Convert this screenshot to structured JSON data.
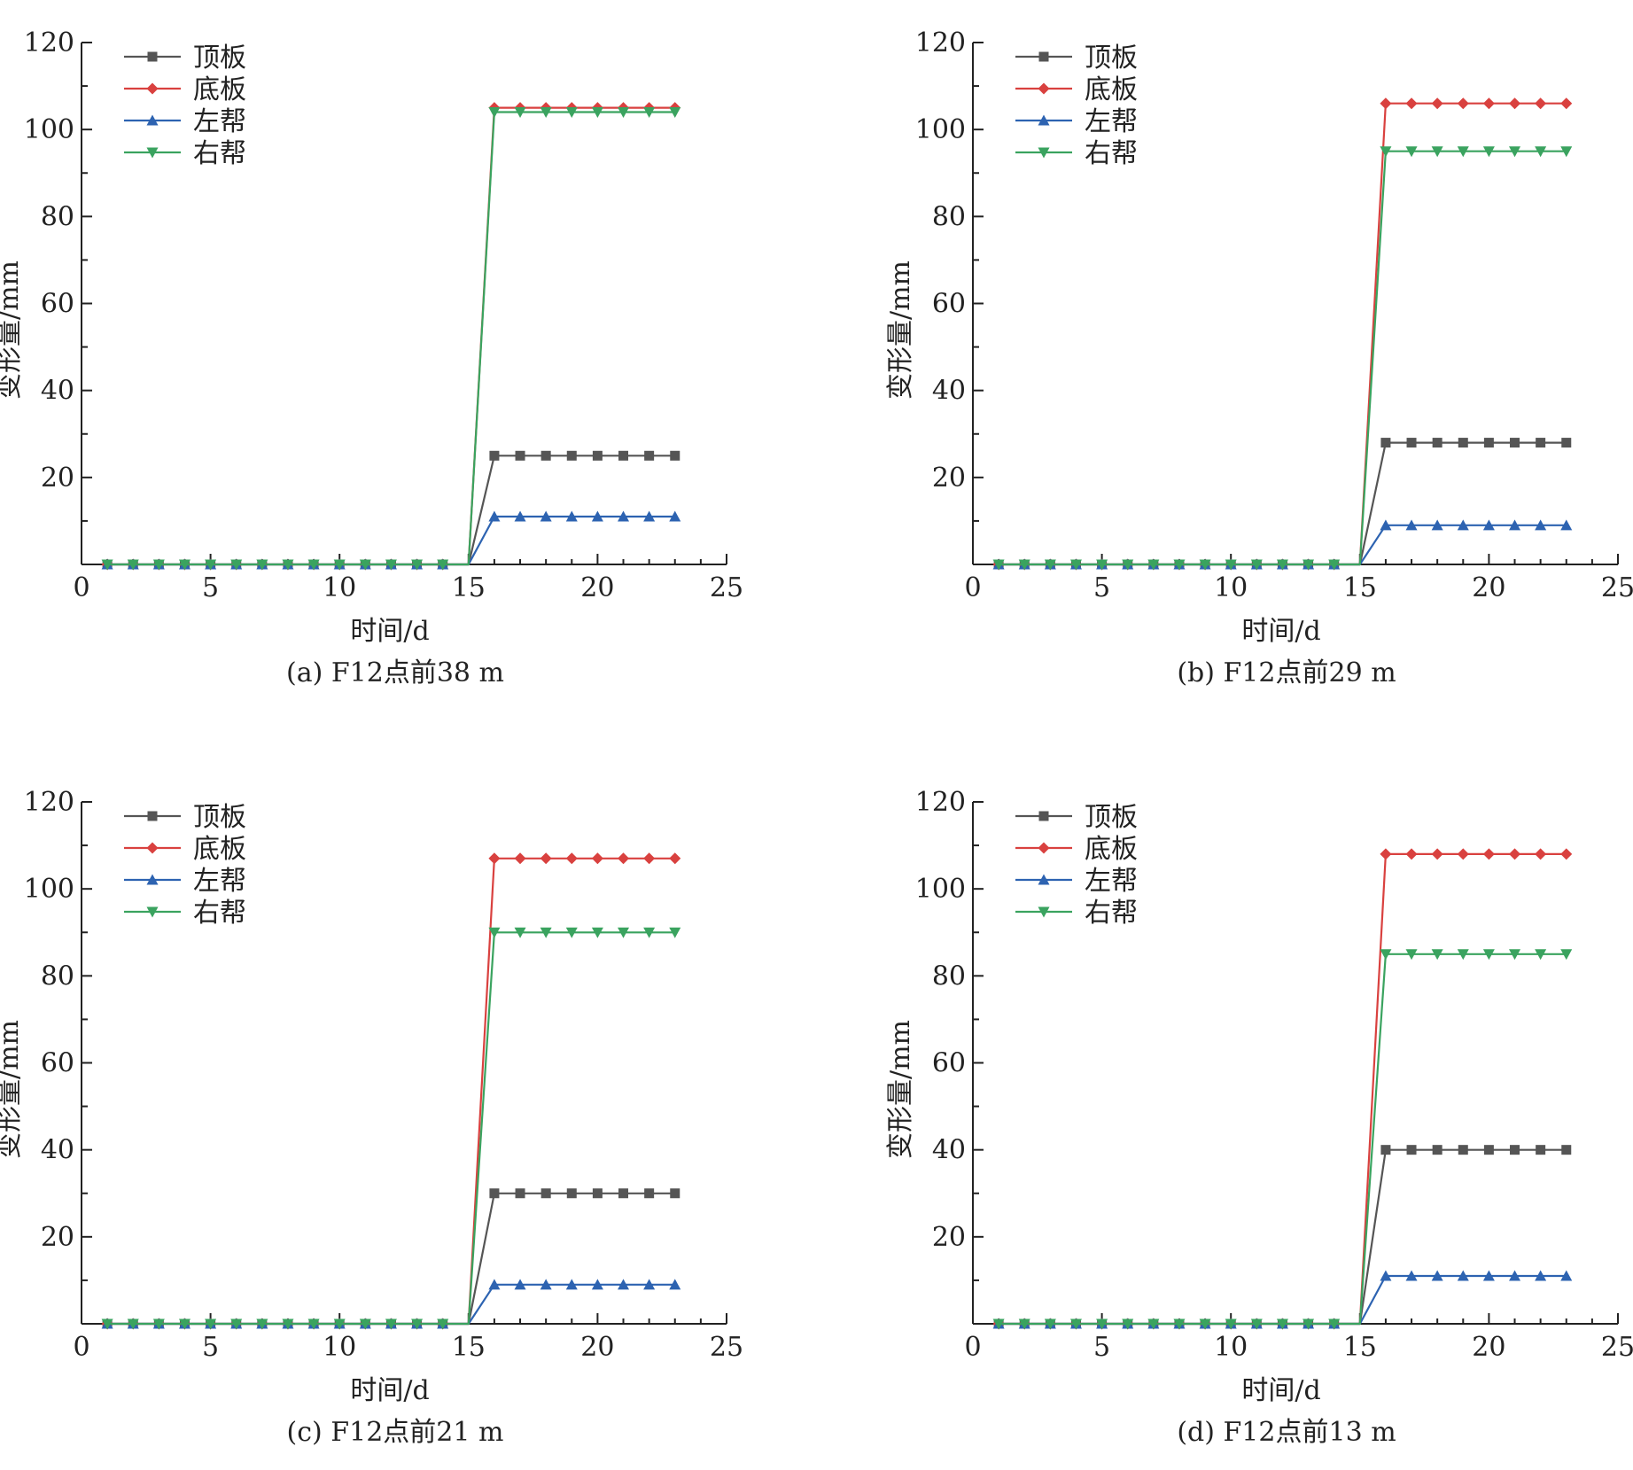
{
  "chart_data": [
    {
      "type": "line",
      "caption": "(a) F12点前38 m",
      "xlabel": "时间/d",
      "ylabel": "变形量/mm",
      "xlim": [
        0,
        25
      ],
      "ylim": [
        0,
        120
      ],
      "xticks": [
        "0",
        "5",
        "10",
        "15",
        "20",
        "25"
      ],
      "yticks": [
        "20",
        "40",
        "60",
        "80",
        "100",
        "120"
      ],
      "legend_position": "top-left",
      "x": [
        1,
        2,
        3,
        4,
        5,
        6,
        7,
        8,
        9,
        10,
        11,
        12,
        13,
        14,
        15,
        16,
        17,
        18,
        19,
        20,
        21,
        22,
        23
      ],
      "series": [
        {
          "name": "顶板",
          "color": "#555555",
          "marker": "square",
          "values": [
            0,
            0,
            0,
            0,
            0,
            0,
            0,
            0,
            0,
            0,
            0,
            0,
            0,
            0,
            0,
            25,
            25,
            25,
            25,
            25,
            25,
            25,
            25
          ]
        },
        {
          "name": "底板",
          "color": "#d9413f",
          "marker": "diamond",
          "values": [
            0,
            0,
            0,
            0,
            0,
            0,
            0,
            0,
            0,
            0,
            0,
            0,
            0,
            0,
            0,
            105,
            105,
            105,
            105,
            105,
            105,
            105,
            105
          ]
        },
        {
          "name": "左帮",
          "color": "#2d63b1",
          "marker": "triangle-up",
          "values": [
            0,
            0,
            0,
            0,
            0,
            0,
            0,
            0,
            0,
            0,
            0,
            0,
            0,
            0,
            0,
            11,
            11,
            11,
            11,
            11,
            11,
            11,
            11
          ]
        },
        {
          "name": "右帮",
          "color": "#3aa35f",
          "marker": "triangle-down",
          "values": [
            0,
            0,
            0,
            0,
            0,
            0,
            0,
            0,
            0,
            0,
            0,
            0,
            0,
            0,
            0,
            104,
            104,
            104,
            104,
            104,
            104,
            104,
            104
          ]
        }
      ]
    },
    {
      "type": "line",
      "caption": "(b) F12点前29 m",
      "xlabel": "时间/d",
      "ylabel": "变形量/mm",
      "xlim": [
        0,
        25
      ],
      "ylim": [
        0,
        120
      ],
      "xticks": [
        "0",
        "5",
        "10",
        "15",
        "20",
        "25"
      ],
      "yticks": [
        "20",
        "40",
        "60",
        "80",
        "100",
        "120"
      ],
      "legend_position": "top-left",
      "x": [
        1,
        2,
        3,
        4,
        5,
        6,
        7,
        8,
        9,
        10,
        11,
        12,
        13,
        14,
        15,
        16,
        17,
        18,
        19,
        20,
        21,
        22,
        23
      ],
      "series": [
        {
          "name": "顶板",
          "color": "#555555",
          "marker": "square",
          "values": [
            0,
            0,
            0,
            0,
            0,
            0,
            0,
            0,
            0,
            0,
            0,
            0,
            0,
            0,
            0,
            28,
            28,
            28,
            28,
            28,
            28,
            28,
            28
          ]
        },
        {
          "name": "底板",
          "color": "#d9413f",
          "marker": "diamond",
          "values": [
            0,
            0,
            0,
            0,
            0,
            0,
            0,
            0,
            0,
            0,
            0,
            0,
            0,
            0,
            0,
            106,
            106,
            106,
            106,
            106,
            106,
            106,
            106
          ]
        },
        {
          "name": "左帮",
          "color": "#2d63b1",
          "marker": "triangle-up",
          "values": [
            0,
            0,
            0,
            0,
            0,
            0,
            0,
            0,
            0,
            0,
            0,
            0,
            0,
            0,
            0,
            9,
            9,
            9,
            9,
            9,
            9,
            9,
            9
          ]
        },
        {
          "name": "右帮",
          "color": "#3aa35f",
          "marker": "triangle-down",
          "values": [
            0,
            0,
            0,
            0,
            0,
            0,
            0,
            0,
            0,
            0,
            0,
            0,
            0,
            0,
            0,
            95,
            95,
            95,
            95,
            95,
            95,
            95,
            95
          ]
        }
      ]
    },
    {
      "type": "line",
      "caption": "(c) F12点前21 m",
      "xlabel": "时间/d",
      "ylabel": "变形量/mm",
      "xlim": [
        0,
        25
      ],
      "ylim": [
        0,
        120
      ],
      "xticks": [
        "0",
        "5",
        "10",
        "15",
        "20",
        "25"
      ],
      "yticks": [
        "20",
        "40",
        "60",
        "80",
        "100",
        "120"
      ],
      "legend_position": "top-left",
      "x": [
        1,
        2,
        3,
        4,
        5,
        6,
        7,
        8,
        9,
        10,
        11,
        12,
        13,
        14,
        15,
        16,
        17,
        18,
        19,
        20,
        21,
        22,
        23
      ],
      "series": [
        {
          "name": "顶板",
          "color": "#555555",
          "marker": "square",
          "values": [
            0,
            0,
            0,
            0,
            0,
            0,
            0,
            0,
            0,
            0,
            0,
            0,
            0,
            0,
            0,
            30,
            30,
            30,
            30,
            30,
            30,
            30,
            30
          ]
        },
        {
          "name": "底板",
          "color": "#d9413f",
          "marker": "diamond",
          "values": [
            0,
            0,
            0,
            0,
            0,
            0,
            0,
            0,
            0,
            0,
            0,
            0,
            0,
            0,
            0,
            107,
            107,
            107,
            107,
            107,
            107,
            107,
            107
          ]
        },
        {
          "name": "左帮",
          "color": "#2d63b1",
          "marker": "triangle-up",
          "values": [
            0,
            0,
            0,
            0,
            0,
            0,
            0,
            0,
            0,
            0,
            0,
            0,
            0,
            0,
            0,
            9,
            9,
            9,
            9,
            9,
            9,
            9,
            9
          ]
        },
        {
          "name": "右帮",
          "color": "#3aa35f",
          "marker": "triangle-down",
          "values": [
            0,
            0,
            0,
            0,
            0,
            0,
            0,
            0,
            0,
            0,
            0,
            0,
            0,
            0,
            0,
            90,
            90,
            90,
            90,
            90,
            90,
            90,
            90
          ]
        }
      ]
    },
    {
      "type": "line",
      "caption": "(d) F12点前13 m",
      "xlabel": "时间/d",
      "ylabel": "变形量/mm",
      "xlim": [
        0,
        25
      ],
      "ylim": [
        0,
        120
      ],
      "xticks": [
        "0",
        "5",
        "10",
        "15",
        "20",
        "25"
      ],
      "yticks": [
        "20",
        "40",
        "60",
        "80",
        "100",
        "120"
      ],
      "legend_position": "top-left",
      "x": [
        1,
        2,
        3,
        4,
        5,
        6,
        7,
        8,
        9,
        10,
        11,
        12,
        13,
        14,
        15,
        16,
        17,
        18,
        19,
        20,
        21,
        22,
        23
      ],
      "series": [
        {
          "name": "顶板",
          "color": "#555555",
          "marker": "square",
          "values": [
            0,
            0,
            0,
            0,
            0,
            0,
            0,
            0,
            0,
            0,
            0,
            0,
            0,
            0,
            0,
            40,
            40,
            40,
            40,
            40,
            40,
            40,
            40
          ]
        },
        {
          "name": "底板",
          "color": "#d9413f",
          "marker": "diamond",
          "values": [
            0,
            0,
            0,
            0,
            0,
            0,
            0,
            0,
            0,
            0,
            0,
            0,
            0,
            0,
            0,
            108,
            108,
            108,
            108,
            108,
            108,
            108,
            108
          ]
        },
        {
          "name": "左帮",
          "color": "#2d63b1",
          "marker": "triangle-up",
          "values": [
            0,
            0,
            0,
            0,
            0,
            0,
            0,
            0,
            0,
            0,
            0,
            0,
            0,
            0,
            0,
            11,
            11,
            11,
            11,
            11,
            11,
            11,
            11
          ]
        },
        {
          "name": "右帮",
          "color": "#3aa35f",
          "marker": "triangle-down",
          "values": [
            0,
            0,
            0,
            0,
            0,
            0,
            0,
            0,
            0,
            0,
            0,
            0,
            0,
            0,
            0,
            85,
            85,
            85,
            85,
            85,
            85,
            85,
            85
          ]
        }
      ]
    }
  ]
}
